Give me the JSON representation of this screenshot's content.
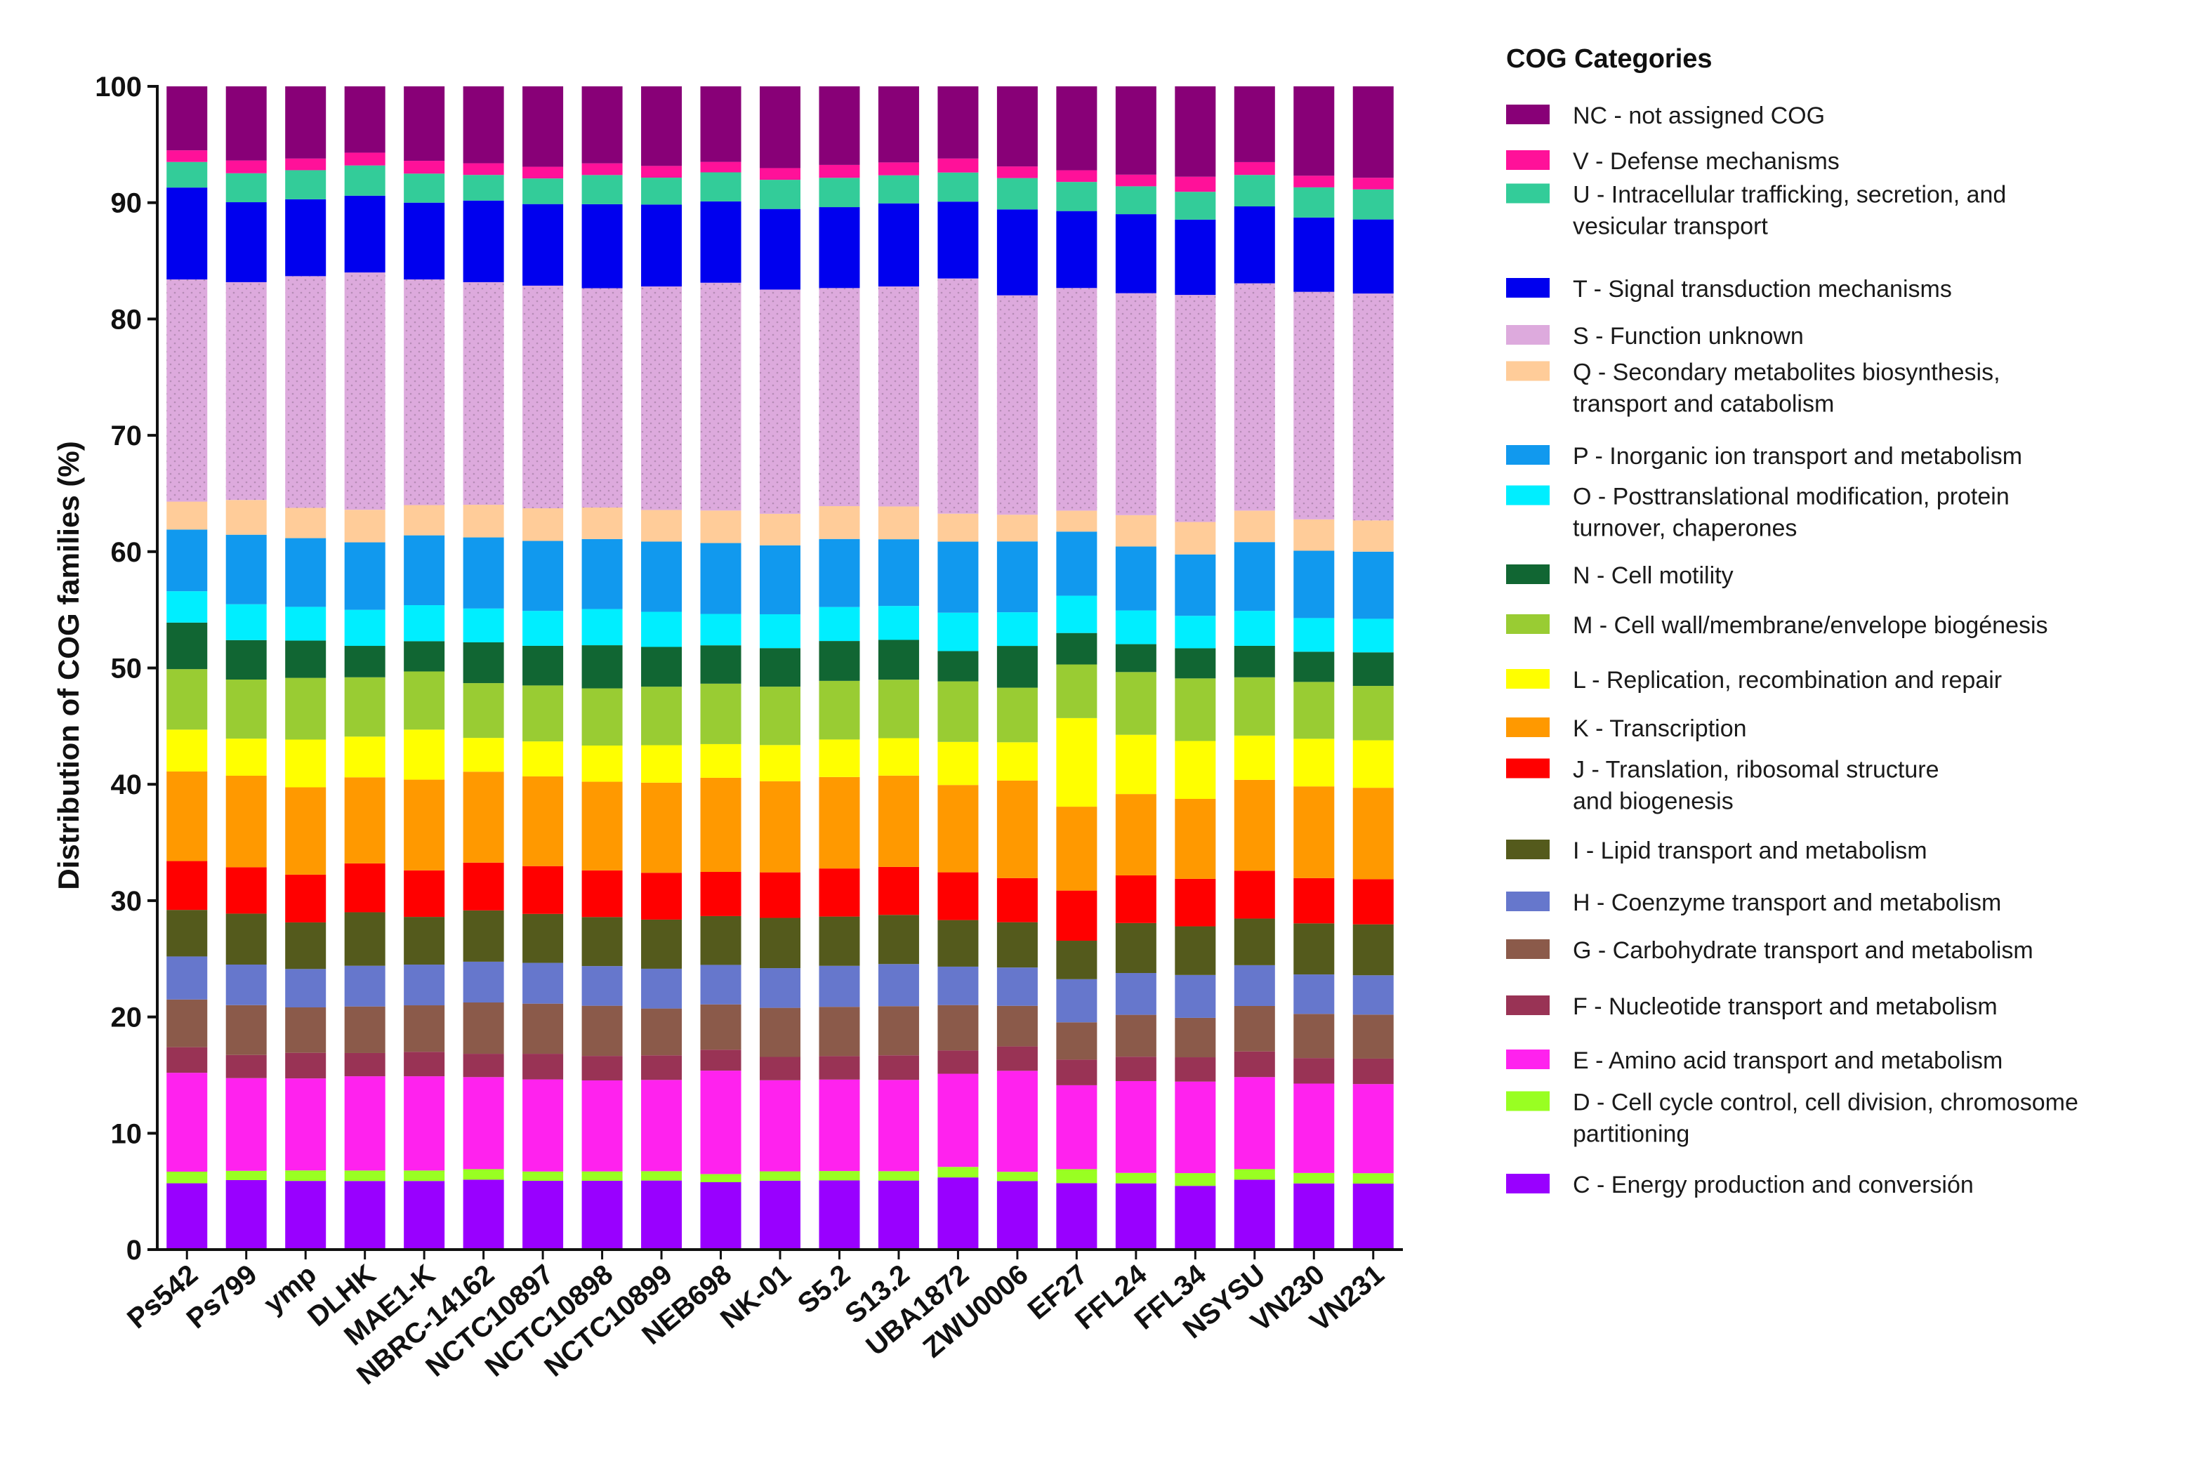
{
  "chart_data": {
    "type": "bar",
    "stacked": true,
    "title": "",
    "xlabel": "",
    "ylabel": "Distribution of COG families (%)",
    "ylim": [
      0,
      100
    ],
    "yticks": [
      0,
      10,
      20,
      30,
      40,
      50,
      60,
      70,
      80,
      90,
      100
    ],
    "legend_title": "COG Categories",
    "legend_position": "right",
    "categories": [
      "Ps542",
      "Ps799",
      "ymp",
      "DLHK",
      "MAE1-K",
      "NBRC-14162",
      "NCTC10897",
      "NCTC10898",
      "NCTC10899",
      "NEB698",
      "NK-01",
      "S5.2",
      "S13.2",
      "UBA1872",
      "ZWU0006",
      "EF27",
      "FFL24",
      "FFL34",
      "NSYSU",
      "VN230",
      "VN231"
    ],
    "series": [
      {
        "name": "C",
        "color": "#9900ff",
        "values": [
          5.7,
          6.0,
          5.9,
          5.9,
          5.9,
          6.0,
          5.9,
          5.9,
          5.9,
          5.8,
          5.9,
          5.9,
          5.9,
          6.2,
          5.9,
          5.7,
          5.7,
          5.5,
          6.0,
          5.7,
          5.7
        ]
      },
      {
        "name": "D",
        "color": "#99ff22",
        "values": [
          1.0,
          0.8,
          0.9,
          0.9,
          0.9,
          0.9,
          0.8,
          0.8,
          0.8,
          0.7,
          0.8,
          0.8,
          0.8,
          0.9,
          0.8,
          1.2,
          0.9,
          1.1,
          0.9,
          0.9,
          0.9
        ]
      },
      {
        "name": "E",
        "color": "#ff22ee",
        "values": [
          8.5,
          8.0,
          7.9,
          8.1,
          8.1,
          7.9,
          7.9,
          7.8,
          7.8,
          8.9,
          7.8,
          7.8,
          7.8,
          8.0,
          8.7,
          7.2,
          7.9,
          7.9,
          7.9,
          7.7,
          7.7
        ]
      },
      {
        "name": "F",
        "color": "#993355",
        "values": [
          2.2,
          2.0,
          2.2,
          2.0,
          2.1,
          2.0,
          2.2,
          2.1,
          2.1,
          1.8,
          2.0,
          2.0,
          2.1,
          2.0,
          2.1,
          2.2,
          2.1,
          2.1,
          2.2,
          2.2,
          2.2
        ]
      },
      {
        "name": "G",
        "color": "#8b5a4a",
        "values": [
          4.1,
          4.3,
          3.9,
          4.0,
          4.0,
          4.4,
          4.3,
          4.3,
          4.0,
          3.9,
          4.2,
          4.2,
          4.2,
          3.9,
          3.5,
          3.2,
          3.6,
          3.4,
          3.9,
          3.8,
          3.8
        ]
      },
      {
        "name": "H",
        "color": "#6677cc",
        "values": [
          3.7,
          3.5,
          3.3,
          3.5,
          3.5,
          3.5,
          3.5,
          3.4,
          3.4,
          3.4,
          3.4,
          3.5,
          3.6,
          3.3,
          3.3,
          3.7,
          3.6,
          3.7,
          3.5,
          3.4,
          3.4
        ]
      },
      {
        "name": "I",
        "color": "#545a1c",
        "values": [
          4.0,
          4.4,
          4.0,
          4.6,
          4.1,
          4.4,
          4.2,
          4.2,
          4.2,
          4.2,
          4.3,
          4.2,
          4.2,
          4.0,
          3.9,
          3.3,
          4.3,
          4.2,
          4.0,
          4.4,
          4.4
        ]
      },
      {
        "name": "J",
        "color": "#ff0000",
        "values": [
          4.2,
          4.0,
          4.1,
          4.2,
          4.0,
          4.1,
          4.1,
          4.0,
          4.0,
          3.8,
          3.9,
          4.1,
          4.1,
          4.1,
          3.8,
          4.3,
          4.1,
          4.1,
          4.1,
          3.9,
          3.9
        ]
      },
      {
        "name": "K",
        "color": "#ff9900",
        "values": [
          7.7,
          7.9,
          7.5,
          7.4,
          7.8,
          7.8,
          7.7,
          7.6,
          7.7,
          8.1,
          7.8,
          7.8,
          7.8,
          7.5,
          8.4,
          7.2,
          7.0,
          6.9,
          7.8,
          7.9,
          7.9
        ]
      },
      {
        "name": "L",
        "color": "#ffff00",
        "values": [
          3.6,
          3.2,
          4.1,
          3.5,
          4.3,
          2.9,
          3.0,
          3.1,
          3.2,
          2.9,
          3.1,
          3.2,
          3.2,
          3.7,
          3.3,
          7.6,
          5.1,
          5.0,
          3.8,
          4.1,
          4.1
        ]
      },
      {
        "name": "M",
        "color": "#99cc33",
        "values": [
          5.2,
          5.1,
          5.3,
          5.1,
          5.0,
          4.7,
          4.8,
          4.9,
          5.0,
          5.2,
          5.0,
          5.0,
          5.0,
          5.2,
          4.7,
          4.6,
          5.4,
          5.4,
          5.0,
          4.9,
          4.7
        ]
      },
      {
        "name": "N",
        "color": "#116633",
        "values": [
          4.0,
          3.4,
          3.2,
          2.7,
          2.6,
          3.5,
          3.4,
          3.7,
          3.4,
          3.3,
          3.3,
          3.4,
          3.4,
          2.6,
          3.6,
          2.7,
          2.4,
          2.6,
          2.7,
          2.6,
          2.9
        ]
      },
      {
        "name": "O",
        "color": "#00eeff",
        "values": [
          2.7,
          3.1,
          2.9,
          3.1,
          3.1,
          2.9,
          3.0,
          3.1,
          3.0,
          2.7,
          2.9,
          2.9,
          2.9,
          3.3,
          2.9,
          3.2,
          2.9,
          2.8,
          3.0,
          2.9,
          2.9
        ]
      },
      {
        "name": "P",
        "color": "#1199ee",
        "values": [
          5.3,
          6.0,
          5.9,
          5.8,
          6.0,
          6.1,
          6.0,
          6.0,
          6.0,
          6.1,
          5.9,
          5.8,
          5.7,
          6.1,
          6.1,
          5.5,
          5.5,
          5.3,
          5.9,
          5.8,
          5.8
        ]
      },
      {
        "name": "Q",
        "color": "#ffcc99",
        "values": [
          2.4,
          3.0,
          2.6,
          2.8,
          2.6,
          2.8,
          2.8,
          2.7,
          2.7,
          2.8,
          2.7,
          2.8,
          2.8,
          2.4,
          2.3,
          1.8,
          2.7,
          2.8,
          2.7,
          2.7,
          2.7
        ]
      },
      {
        "name": "S",
        "color": "#ddaadd",
        "values": [
          19.1,
          18.8,
          19.9,
          20.4,
          19.4,
          19.1,
          19.1,
          18.8,
          19.1,
          19.6,
          19.2,
          18.6,
          18.8,
          20.2,
          18.9,
          19.1,
          19.1,
          19.6,
          19.5,
          19.6,
          19.6
        ]
      },
      {
        "name": "T",
        "color": "#0000ee",
        "values": [
          7.9,
          6.9,
          6.6,
          6.6,
          6.6,
          7.0,
          7.0,
          7.2,
          7.0,
          7.0,
          6.9,
          6.9,
          7.1,
          6.6,
          7.4,
          6.6,
          6.8,
          6.5,
          6.6,
          6.4,
          6.4
        ]
      },
      {
        "name": "U",
        "color": "#33cc99",
        "values": [
          2.2,
          2.5,
          2.5,
          2.6,
          2.5,
          2.2,
          2.2,
          2.5,
          2.3,
          2.5,
          2.5,
          2.5,
          2.4,
          2.5,
          2.7,
          2.5,
          2.4,
          2.4,
          2.7,
          2.6,
          2.6
        ]
      },
      {
        "name": "V",
        "color": "#ff1199",
        "values": [
          1.0,
          1.1,
          1.0,
          1.1,
          1.1,
          1.0,
          1.0,
          1.0,
          1.0,
          0.9,
          1.0,
          1.1,
          1.1,
          1.2,
          1.0,
          1.0,
          1.0,
          1.3,
          1.1,
          1.0,
          1.0
        ]
      },
      {
        "name": "NC",
        "color": "#880077",
        "values": [
          5.5,
          6.4,
          6.2,
          5.7,
          6.4,
          6.6,
          6.9,
          6.6,
          6.8,
          6.5,
          7.0,
          6.7,
          6.5,
          6.2,
          6.9,
          7.2,
          7.6,
          7.8,
          6.5,
          7.7,
          7.9
        ]
      }
    ],
    "legend": [
      {
        "series": "NC",
        "lines": [
          "NC - not assigned COG"
        ]
      },
      {
        "series": "V",
        "lines": [
          "V - Defense mechanisms"
        ]
      },
      {
        "series": "U",
        "lines": [
          "U - Intracellular trafficking, secretion, and",
          "vesicular transport"
        ]
      },
      {
        "series": "T",
        "lines": [
          "T - Signal transduction mechanisms"
        ]
      },
      {
        "series": "S",
        "lines": [
          "S - Function unknown"
        ]
      },
      {
        "series": "Q",
        "lines": [
          "Q - Secondary metabolites biosynthesis,",
          "transport and catabolism"
        ]
      },
      {
        "series": "P",
        "lines": [
          "P - Inorganic ion transport and metabolism"
        ]
      },
      {
        "series": "O",
        "lines": [
          "O - Posttranslational modification, protein",
          "turnover, chaperones"
        ]
      },
      {
        "series": "N",
        "lines": [
          "N - Cell motility"
        ]
      },
      {
        "series": "M",
        "lines": [
          "M - Cell wall/membrane/envelope biogénesis"
        ]
      },
      {
        "series": "L",
        "lines": [
          "L - Replication, recombination and repair"
        ]
      },
      {
        "series": "K",
        "lines": [
          "K - Transcription"
        ]
      },
      {
        "series": "J",
        "lines": [
          "J - Translation, ribosomal structure",
          "and biogenesis"
        ]
      },
      {
        "series": "I",
        "lines": [
          "I - Lipid transport and metabolism"
        ]
      },
      {
        "series": "H",
        "lines": [
          "H - Coenzyme transport and metabolism"
        ]
      },
      {
        "series": "G",
        "lines": [
          "G - Carbohydrate transport and metabolism"
        ]
      },
      {
        "series": "F",
        "lines": [
          "F - Nucleotide transport and metabolism"
        ]
      },
      {
        "series": "E",
        "lines": [
          "E - Amino acid transport and metabolism"
        ]
      },
      {
        "series": "D",
        "lines": [
          "D - Cell cycle control, cell division, chromosome",
          "partitioning"
        ]
      },
      {
        "series": "C",
        "lines": [
          "C - Energy production and conversión"
        ]
      }
    ]
  }
}
